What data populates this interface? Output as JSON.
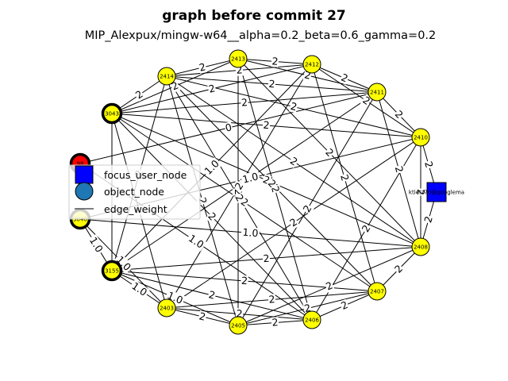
{
  "title": "graph before commit 27",
  "subtitle": "MIP_Alexpux/mingw-w64__alpha=0.2_beta=0.6_gamma=0.2",
  "colors": {
    "object_default": "#ffff00",
    "focus_user": "#0000ff",
    "highlight": "#ff0000",
    "legend_object": "#1f77b4",
    "edge": "#000000"
  },
  "legend": [
    {
      "label": "focus_user_node",
      "marker": "square"
    },
    {
      "label": "object_node",
      "marker": "circle"
    },
    {
      "label": "edge_weight",
      "marker": "line"
    }
  ],
  "nodes": [
    {
      "id": "2413",
      "label": "2413",
      "kind": "object",
      "bold": false
    },
    {
      "id": "2412",
      "label": "2412",
      "kind": "object",
      "bold": false
    },
    {
      "id": "2411",
      "label": "2411",
      "kind": "object",
      "bold": false
    },
    {
      "id": "2410",
      "label": "2410",
      "kind": "object",
      "bold": false
    },
    {
      "id": "2408",
      "label": "2408",
      "kind": "object",
      "bold": false
    },
    {
      "id": "2407",
      "label": "2407",
      "kind": "object",
      "bold": false
    },
    {
      "id": "2406",
      "label": "2406",
      "kind": "object",
      "bold": false
    },
    {
      "id": "2405",
      "label": "2405",
      "kind": "object",
      "bold": false
    },
    {
      "id": "2403",
      "label": "2403",
      "kind": "object",
      "bold": false
    },
    {
      "id": "3155",
      "label": "3155",
      "kind": "object",
      "bold": true
    },
    {
      "id": "3040",
      "label": "3040",
      "kind": "object",
      "bold": true
    },
    {
      "id": "98",
      "label": "98",
      "kind": "highlight",
      "bold": true
    },
    {
      "id": "3043",
      "label": "3043",
      "kind": "object",
      "bold": true
    },
    {
      "id": "2414",
      "label": "2414",
      "kind": "object",
      "bold": false
    },
    {
      "id": "user",
      "label": "ktietz70@googlema",
      "kind": "focus_user",
      "bold": false
    }
  ],
  "edges": [
    {
      "source": "2413",
      "target": "2412",
      "weight": "2"
    },
    {
      "source": "2413",
      "target": "2414",
      "weight": "2"
    },
    {
      "source": "2413",
      "target": "2411",
      "weight": "2"
    },
    {
      "source": "2413",
      "target": "3043",
      "weight": "2"
    },
    {
      "source": "2413",
      "target": "2408",
      "weight": "2"
    },
    {
      "source": "2413",
      "target": "2406",
      "weight": "2"
    },
    {
      "source": "2413",
      "target": "2405",
      "weight": "2"
    },
    {
      "source": "2412",
      "target": "2411",
      "weight": "2"
    },
    {
      "source": "2412",
      "target": "2414",
      "weight": "2"
    },
    {
      "source": "2412",
      "target": "2410",
      "weight": "2"
    },
    {
      "source": "2412",
      "target": "3043",
      "weight": "2"
    },
    {
      "source": "2412",
      "target": "2407",
      "weight": "2"
    },
    {
      "source": "2412",
      "target": "2403",
      "weight": "2"
    },
    {
      "source": "2411",
      "target": "2410",
      "weight": "2"
    },
    {
      "source": "2411",
      "target": "2414",
      "weight": "2"
    },
    {
      "source": "2411",
      "target": "3043",
      "weight": "2"
    },
    {
      "source": "2411",
      "target": "2408",
      "weight": "2"
    },
    {
      "source": "2411",
      "target": "2405",
      "weight": "2"
    },
    {
      "source": "2411",
      "target": "3155",
      "weight": "2"
    },
    {
      "source": "2410",
      "target": "2408",
      "weight": "2"
    },
    {
      "source": "2410",
      "target": "2414",
      "weight": "2"
    },
    {
      "source": "2410",
      "target": "3043",
      "weight": "2"
    },
    {
      "source": "2410",
      "target": "2406",
      "weight": "2"
    },
    {
      "source": "2410",
      "target": "2403",
      "weight": "2"
    },
    {
      "source": "2408",
      "target": "2407",
      "weight": "2"
    },
    {
      "source": "2408",
      "target": "2414",
      "weight": "2"
    },
    {
      "source": "2408",
      "target": "3043",
      "weight": "2"
    },
    {
      "source": "2408",
      "target": "2405",
      "weight": "2"
    },
    {
      "source": "2408",
      "target": "3155",
      "weight": "2"
    },
    {
      "source": "2407",
      "target": "2406",
      "weight": "2"
    },
    {
      "source": "2407",
      "target": "2414",
      "weight": "2"
    },
    {
      "source": "2407",
      "target": "2403",
      "weight": "2"
    },
    {
      "source": "2407",
      "target": "3155",
      "weight": "2"
    },
    {
      "source": "2407",
      "target": "2405",
      "weight": "2"
    },
    {
      "source": "2406",
      "target": "2405",
      "weight": "2"
    },
    {
      "source": "2406",
      "target": "2403",
      "weight": "2"
    },
    {
      "source": "2406",
      "target": "3155",
      "weight": "2"
    },
    {
      "source": "2406",
      "target": "3043",
      "weight": "2"
    },
    {
      "source": "2405",
      "target": "2403",
      "weight": "2"
    },
    {
      "source": "2405",
      "target": "3155",
      "weight": "1.0"
    },
    {
      "source": "2405",
      "target": "2414",
      "weight": "2"
    },
    {
      "source": "2403",
      "target": "3155",
      "weight": "1.0"
    },
    {
      "source": "2403",
      "target": "3040",
      "weight": "1.0"
    },
    {
      "source": "2403",
      "target": "3043",
      "weight": "2"
    },
    {
      "source": "3155",
      "target": "3040",
      "weight": "1.0"
    },
    {
      "source": "3155",
      "target": "3043",
      "weight": "2"
    },
    {
      "source": "3155",
      "target": "2412",
      "weight": "1.0"
    },
    {
      "source": "3040",
      "target": "2410",
      "weight": "1.0"
    },
    {
      "source": "3040",
      "target": "2408",
      "weight": "1.0"
    },
    {
      "source": "98",
      "target": "2411",
      "weight": "0"
    },
    {
      "source": "98",
      "target": "2406",
      "weight": "1.0"
    },
    {
      "source": "3043",
      "target": "2414",
      "weight": "2"
    },
    {
      "source": "3043",
      "target": "2407",
      "weight": "2"
    },
    {
      "source": "2414",
      "target": "2406",
      "weight": "2"
    },
    {
      "source": "2414",
      "target": "3155",
      "weight": "2"
    },
    {
      "source": "2410",
      "target": "user",
      "weight": "2"
    },
    {
      "source": "2408",
      "target": "user",
      "weight": "2"
    }
  ]
}
